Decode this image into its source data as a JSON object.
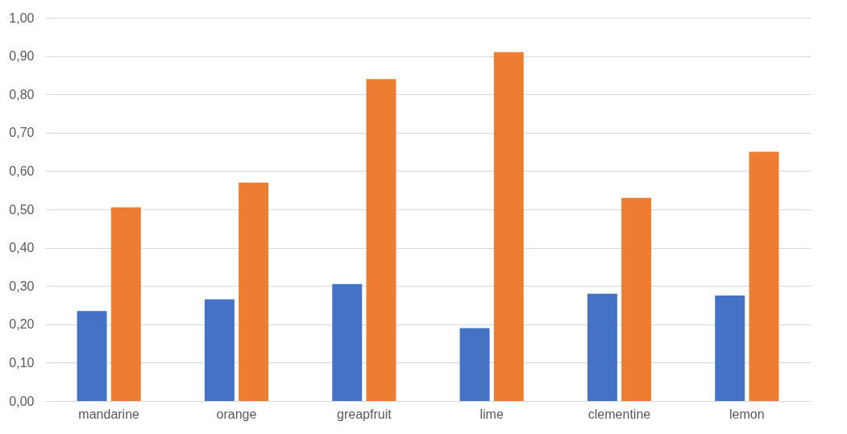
{
  "chart_data": {
    "type": "bar",
    "categories": [
      "mandarine",
      "orange",
      "greapfruit",
      "lime",
      "clementine",
      "lemon"
    ],
    "series": [
      {
        "color": "#4472c4",
        "values": [
          0.235,
          0.265,
          0.305,
          0.19,
          0.28,
          0.275
        ]
      },
      {
        "color": "#ed7d31",
        "values": [
          0.505,
          0.57,
          0.84,
          0.91,
          0.53,
          0.65
        ]
      }
    ],
    "ylim": [
      0,
      1
    ],
    "yticks": [
      {
        "value": 0,
        "label": "0,00"
      },
      {
        "value": 0.1,
        "label": "0,10"
      },
      {
        "value": 0.2,
        "label": "0,20"
      },
      {
        "value": 0.3,
        "label": "0,30"
      },
      {
        "value": 0.4,
        "label": "0,40"
      },
      {
        "value": 0.5,
        "label": "0,50"
      },
      {
        "value": 0.6,
        "label": "0,60"
      },
      {
        "value": 0.7,
        "label": "0,70"
      },
      {
        "value": 0.8,
        "label": "0,80"
      },
      {
        "value": 0.9,
        "label": "0,90"
      },
      {
        "value": 1,
        "label": "1,00"
      }
    ],
    "grid": true,
    "legend": false
  }
}
